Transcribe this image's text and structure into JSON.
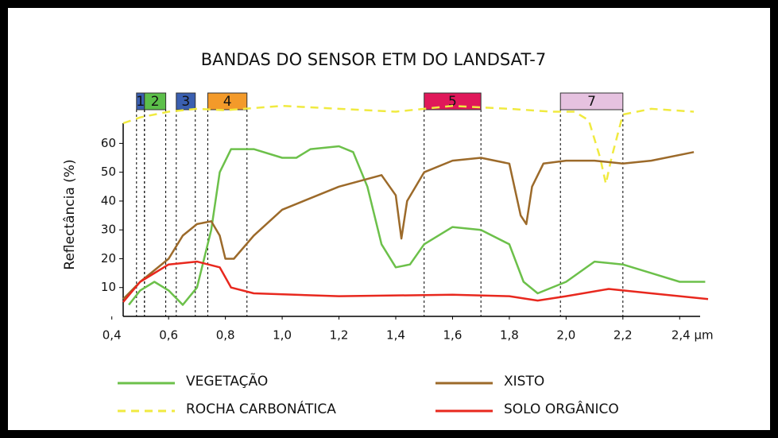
{
  "chart_data": {
    "type": "line",
    "title": "BANDAS DO SENSOR ETM DO LANDSAT-7",
    "y_label": "Reflectância (%)",
    "xlim": [
      0.44,
      2.5
    ],
    "ylim": [
      0,
      67
    ],
    "xticks": [
      {
        "value": 0.4,
        "label": "0,4"
      },
      {
        "value": 0.6,
        "label": "0,6"
      },
      {
        "value": 0.8,
        "label": "0,8"
      },
      {
        "value": 1.0,
        "label": "1,0"
      },
      {
        "value": 1.2,
        "label": "1,2"
      },
      {
        "value": 1.4,
        "label": "1,4"
      },
      {
        "value": 1.6,
        "label": "1,6"
      },
      {
        "value": 1.8,
        "label": "1,8"
      },
      {
        "value": 2.0,
        "label": "2,0"
      },
      {
        "value": 2.2,
        "label": "2,2"
      },
      {
        "value": 2.4,
        "label": "2,4 µm"
      }
    ],
    "yticks": [
      10,
      20,
      30,
      40,
      50,
      60
    ],
    "bands": [
      {
        "label": "1",
        "color": "#3a5fb0",
        "range": [
          0.487,
          0.515
        ]
      },
      {
        "label": "2",
        "color": "#5cbf4a",
        "range": [
          0.515,
          0.59
        ]
      },
      {
        "label": "3",
        "color": "#3a5fb0",
        "range": [
          0.627,
          0.694
        ]
      },
      {
        "label": "4",
        "color": "#f39a2a",
        "range": [
          0.738,
          0.876
        ]
      },
      {
        "label": "5",
        "color": "#e0185a",
        "range": [
          1.5,
          1.7
        ]
      },
      {
        "label": "7",
        "color": "#e6c2e0",
        "range": [
          1.98,
          2.2
        ]
      }
    ],
    "series": [
      {
        "name": "VEGETAÇÃO",
        "color": "#6cc04a",
        "dashed": false,
        "x": [
          0.46,
          0.5,
          0.55,
          0.6,
          0.65,
          0.7,
          0.75,
          0.78,
          0.82,
          0.9,
          1.0,
          1.05,
          1.1,
          1.2,
          1.25,
          1.3,
          1.35,
          1.4,
          1.45,
          1.5,
          1.6,
          1.7,
          1.8,
          1.85,
          1.9,
          2.0,
          2.1,
          2.2,
          2.3,
          2.4,
          2.49
        ],
        "values": [
          4,
          9,
          12,
          9,
          4,
          10,
          30,
          50,
          58,
          58,
          55,
          55,
          58,
          59,
          57,
          45,
          25,
          17,
          18,
          25,
          31,
          30,
          25,
          12,
          8,
          12,
          19,
          18,
          15,
          12,
          12
        ]
      },
      {
        "name": "ROCHA CARBONÁTICA",
        "color": "#f0ea40",
        "dashed": true,
        "x": [
          0.44,
          0.5,
          0.6,
          0.7,
          0.8,
          1.0,
          1.2,
          1.4,
          1.6,
          1.8,
          1.95,
          2.03,
          2.08,
          2.12,
          2.14,
          2.16,
          2.2,
          2.3,
          2.45
        ],
        "values": [
          67,
          69,
          71,
          72,
          71.5,
          73,
          72,
          71,
          73,
          72,
          71,
          71,
          68,
          55,
          46,
          55,
          70,
          72,
          71
        ]
      },
      {
        "name": "XISTO",
        "color": "#9c6a2a",
        "dashed": false,
        "x": [
          0.44,
          0.5,
          0.6,
          0.65,
          0.7,
          0.75,
          0.78,
          0.8,
          0.83,
          0.9,
          1.0,
          1.2,
          1.35,
          1.4,
          1.42,
          1.44,
          1.5,
          1.6,
          1.7,
          1.8,
          1.84,
          1.86,
          1.88,
          1.92,
          2.0,
          2.1,
          2.2,
          2.3,
          2.45
        ],
        "values": [
          6,
          12,
          20,
          28,
          32,
          33,
          28,
          20,
          20,
          28,
          37,
          45,
          49,
          42,
          27,
          40,
          50,
          54,
          55,
          53,
          35,
          32,
          45,
          53,
          54,
          54,
          53,
          54,
          57
        ]
      },
      {
        "name": "SOLO  ORGÂNICO",
        "color": "#e8281e",
        "dashed": false,
        "x": [
          0.44,
          0.5,
          0.6,
          0.7,
          0.78,
          0.82,
          0.9,
          1.2,
          1.6,
          1.8,
          1.9,
          2.0,
          2.15,
          2.3,
          2.5
        ],
        "values": [
          5,
          12,
          18,
          19,
          17,
          10,
          8,
          7,
          7.5,
          7,
          5.5,
          7,
          9.5,
          8,
          6
        ]
      }
    ]
  }
}
